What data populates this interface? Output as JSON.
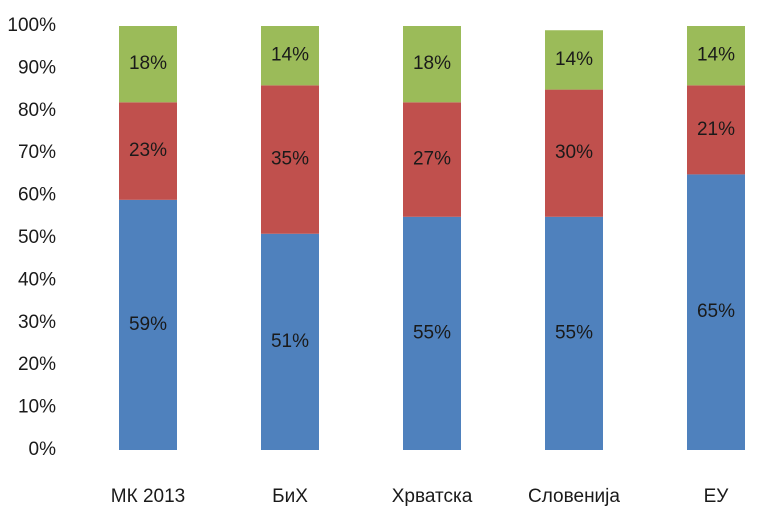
{
  "chart_data": {
    "type": "stacked_bar",
    "categories": [
      "МК 2013",
      "БиХ",
      "Хрватска",
      "Словенија",
      "ЕУ"
    ],
    "series": [
      {
        "color": "#4f81bd",
        "values": [
          59,
          51,
          55,
          55,
          65
        ],
        "value_labels": [
          "59%",
          "51%",
          "55%",
          "55%",
          "65%"
        ]
      },
      {
        "color": "#c0504d",
        "values": [
          23,
          35,
          27,
          30,
          21
        ],
        "value_labels": [
          "23%",
          "35%",
          "27%",
          "30%",
          "21%"
        ]
      },
      {
        "color": "#9bbb59",
        "values": [
          18,
          14,
          18,
          14,
          14
        ],
        "value_labels": [
          "18%",
          "14%",
          "18%",
          "14%",
          "14%"
        ]
      }
    ],
    "ylim": [
      0,
      100
    ],
    "yticks": [
      {
        "value": 0,
        "label": "0%"
      },
      {
        "value": 10,
        "label": "10%"
      },
      {
        "value": 20,
        "label": "20%"
      },
      {
        "value": 30,
        "label": "30%"
      },
      {
        "value": 40,
        "label": "40%"
      },
      {
        "value": 50,
        "label": "50%"
      },
      {
        "value": 60,
        "label": "60%"
      },
      {
        "value": 70,
        "label": "70%"
      },
      {
        "value": 80,
        "label": "80%"
      },
      {
        "value": 90,
        "label": "90%"
      },
      {
        "value": 100,
        "label": "100%"
      }
    ],
    "grid": false
  }
}
